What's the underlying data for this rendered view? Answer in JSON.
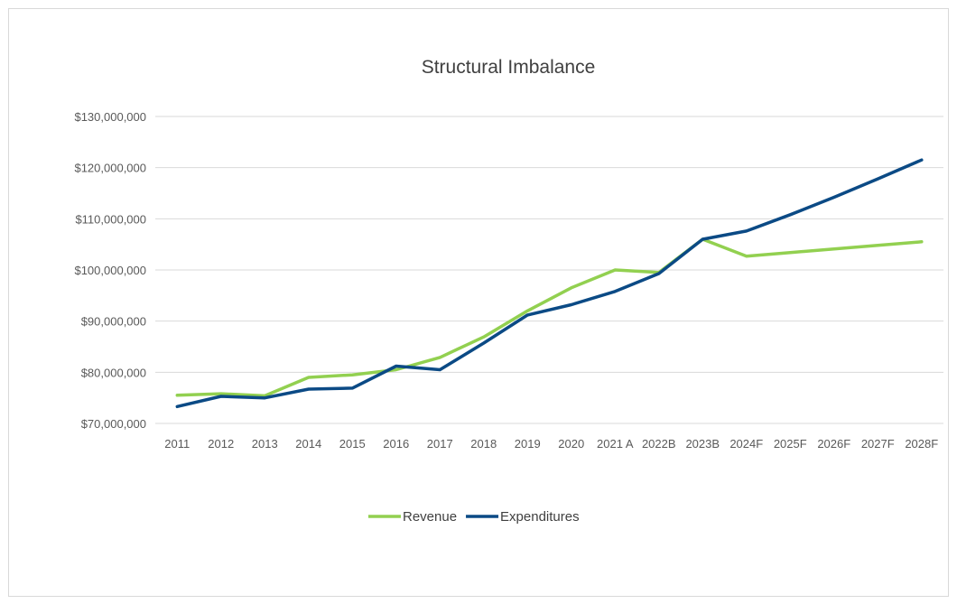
{
  "chart_data": {
    "type": "line",
    "title": "Structural Imbalance",
    "xlabel": "",
    "ylabel": "",
    "categories": [
      "2011",
      "2012",
      "2013",
      "2014",
      "2015",
      "2016",
      "2017",
      "2018",
      "2019",
      "2020",
      "2021 A",
      "2022B",
      "2023B",
      "2024F",
      "2025F",
      "2026F",
      "2027F",
      "2028F"
    ],
    "ylim": [
      70000000,
      130000000
    ],
    "yticks": [
      "$70,000,000",
      "$80,000,000",
      "$90,000,000",
      "$100,000,000",
      "$110,000,000",
      "$120,000,000",
      "$130,000,000"
    ],
    "ytick_values": [
      70000000,
      80000000,
      90000000,
      100000000,
      110000000,
      120000000,
      130000000
    ],
    "grid": true,
    "legend_position": "bottom",
    "series": [
      {
        "name": "Revenue",
        "color": "#92D050",
        "values": [
          75500000,
          75800000,
          75400000,
          79000000,
          79500000,
          80500000,
          82900000,
          86900000,
          92000000,
          96500000,
          100000000,
          99500000,
          106000000,
          102700000,
          103400000,
          104100000,
          104800000,
          105500000
        ]
      },
      {
        "name": "Expenditures",
        "color": "#0B4A85",
        "values": [
          73300000,
          75300000,
          75000000,
          76700000,
          76900000,
          81200000,
          80500000,
          85700000,
          91200000,
          93200000,
          95800000,
          99300000,
          106000000,
          107600000,
          110800000,
          114200000,
          117800000,
          121500000
        ]
      }
    ]
  }
}
